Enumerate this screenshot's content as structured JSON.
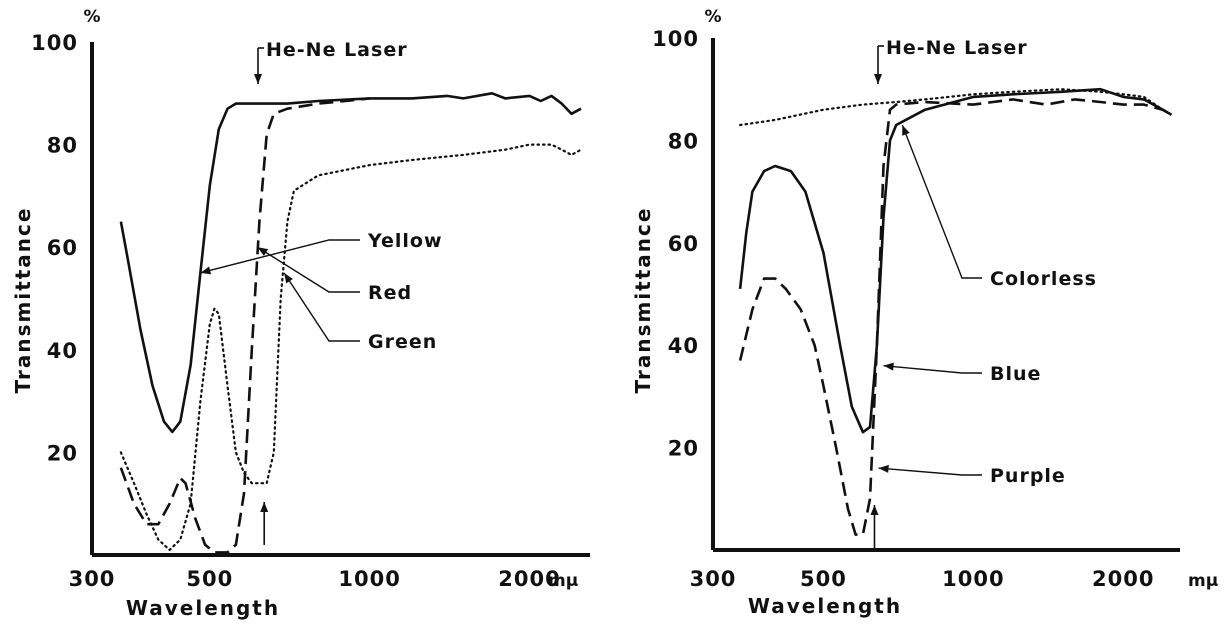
{
  "colors": {
    "ink": "#111111",
    "background": "#ffffff"
  },
  "chart_data": [
    {
      "type": "line",
      "xlabel": "Wavelength",
      "ylabel": "Transmittance",
      "x_unit": "mμ",
      "y_unit": "%",
      "x_scale": "log",
      "xlim": [
        300,
        2600
      ],
      "ylim": [
        0,
        100
      ],
      "x_ticks": [
        300,
        500,
        1000,
        2000
      ],
      "x_tick_labels": [
        "300",
        "500",
        "1000",
        "2000"
      ],
      "y_ticks": [
        20,
        40,
        60,
        80,
        100
      ],
      "y_tick_labels": [
        "20",
        "40",
        "60",
        "80",
        "100"
      ],
      "grid": false,
      "laser_label": "He-Ne Laser",
      "laser_wavelength": 633,
      "series": [
        {
          "name": "Yellow",
          "style": "solid",
          "points": [
            [
              340,
              65
            ],
            [
              350,
              58
            ],
            [
              370,
              44
            ],
            [
              390,
              33
            ],
            [
              410,
              26
            ],
            [
              425,
              24
            ],
            [
              440,
              26
            ],
            [
              460,
              37
            ],
            [
              480,
              55
            ],
            [
              500,
              72
            ],
            [
              520,
              83
            ],
            [
              540,
              87
            ],
            [
              560,
              88
            ],
            [
              600,
              88
            ],
            [
              700,
              88
            ],
            [
              800,
              88.5
            ],
            [
              1000,
              89
            ],
            [
              1200,
              89
            ],
            [
              1400,
              89.5
            ],
            [
              1500,
              89
            ],
            [
              1700,
              90
            ],
            [
              1800,
              89
            ],
            [
              2000,
              89.5
            ],
            [
              2100,
              88.5
            ],
            [
              2200,
              89.5
            ],
            [
              2300,
              88
            ],
            [
              2400,
              86
            ],
            [
              2500,
              87
            ]
          ]
        },
        {
          "name": "Red",
          "style": "dashed",
          "points": [
            [
              340,
              17
            ],
            [
              360,
              10
            ],
            [
              380,
              6
            ],
            [
              400,
              6
            ],
            [
              420,
              10
            ],
            [
              440,
              15
            ],
            [
              450,
              14
            ],
            [
              470,
              7
            ],
            [
              490,
              2
            ],
            [
              510,
              0.5
            ],
            [
              540,
              0.5
            ],
            [
              560,
              2
            ],
            [
              580,
              12
            ],
            [
              600,
              40
            ],
            [
              620,
              65
            ],
            [
              640,
              82
            ],
            [
              660,
              86
            ],
            [
              700,
              87
            ],
            [
              800,
              88
            ],
            [
              900,
              88.5
            ],
            [
              1000,
              89
            ]
          ]
        },
        {
          "name": "Green",
          "style": "dotted",
          "points": [
            [
              340,
              20
            ],
            [
              360,
              14
            ],
            [
              380,
              8
            ],
            [
              400,
              3
            ],
            [
              420,
              1
            ],
            [
              440,
              3
            ],
            [
              460,
              10
            ],
            [
              480,
              30
            ],
            [
              500,
              45
            ],
            [
              510,
              48
            ],
            [
              520,
              47
            ],
            [
              540,
              33
            ],
            [
              560,
              20
            ],
            [
              580,
              16
            ],
            [
              600,
              14
            ],
            [
              640,
              14
            ],
            [
              660,
              20
            ],
            [
              680,
              50
            ],
            [
              700,
              65
            ],
            [
              720,
              71
            ],
            [
              800,
              74
            ],
            [
              1000,
              76
            ],
            [
              1200,
              77
            ],
            [
              1500,
              78
            ],
            [
              1800,
              79
            ],
            [
              2000,
              80
            ],
            [
              2200,
              80
            ],
            [
              2300,
              79
            ],
            [
              2400,
              78
            ],
            [
              2500,
              79
            ]
          ]
        }
      ],
      "annotations": [
        {
          "label": "Yellow",
          "target": [
            480,
            55
          ]
        },
        {
          "label": "Red",
          "target": [
            615,
            60
          ]
        },
        {
          "label": "Green",
          "target": [
            690,
            55
          ]
        }
      ]
    },
    {
      "type": "line",
      "xlabel": "Wavelength",
      "ylabel": "Transmittance",
      "x_unit": "mμ",
      "y_unit": "%",
      "x_scale": "log",
      "xlim": [
        300,
        2600
      ],
      "ylim": [
        0,
        100
      ],
      "x_ticks": [
        300,
        500,
        1000,
        2000
      ],
      "x_tick_labels": [
        "300",
        "500",
        "1000",
        "2000"
      ],
      "y_ticks": [
        20,
        40,
        60,
        80,
        100
      ],
      "y_tick_labels": [
        "20",
        "40",
        "60",
        "80",
        "100"
      ],
      "grid": false,
      "laser_label": "He-Ne Laser",
      "laser_wavelength": 633,
      "series": [
        {
          "name": "Colorless",
          "style": "dotted",
          "points": [
            [
              340,
              83
            ],
            [
              400,
              84
            ],
            [
              500,
              86
            ],
            [
              600,
              87
            ],
            [
              700,
              87.5
            ],
            [
              800,
              88
            ],
            [
              1000,
              89
            ],
            [
              1200,
              89.5
            ],
            [
              1500,
              90
            ],
            [
              1800,
              89.5
            ],
            [
              2000,
              89
            ],
            [
              2200,
              88.5
            ],
            [
              2400,
              86
            ],
            [
              2500,
              85
            ]
          ]
        },
        {
          "name": "Blue",
          "style": "solid",
          "points": [
            [
              340,
              51
            ],
            [
              350,
              62
            ],
            [
              360,
              70
            ],
            [
              380,
              74
            ],
            [
              400,
              75
            ],
            [
              430,
              74
            ],
            [
              460,
              70
            ],
            [
              500,
              58
            ],
            [
              540,
              40
            ],
            [
              570,
              28
            ],
            [
              600,
              23
            ],
            [
              620,
              24
            ],
            [
              640,
              40
            ],
            [
              660,
              65
            ],
            [
              680,
              80
            ],
            [
              700,
              83
            ],
            [
              800,
              86
            ],
            [
              1000,
              88.5
            ],
            [
              1200,
              89
            ],
            [
              1500,
              89.5
            ],
            [
              1800,
              90
            ],
            [
              2000,
              88.5
            ],
            [
              2200,
              88
            ],
            [
              2400,
              86
            ],
            [
              2500,
              85
            ]
          ]
        },
        {
          "name": "Purple",
          "style": "dashed",
          "points": [
            [
              340,
              37
            ],
            [
              360,
              47
            ],
            [
              380,
              53
            ],
            [
              400,
              53
            ],
            [
              420,
              51
            ],
            [
              450,
              47
            ],
            [
              480,
              40
            ],
            [
              500,
              32
            ],
            [
              530,
              20
            ],
            [
              560,
              8
            ],
            [
              580,
              3
            ],
            [
              600,
              3
            ],
            [
              620,
              10
            ],
            [
              640,
              40
            ],
            [
              660,
              75
            ],
            [
              680,
              86
            ],
            [
              700,
              87
            ],
            [
              800,
              87.5
            ],
            [
              1000,
              87
            ],
            [
              1200,
              88
            ],
            [
              1400,
              87
            ],
            [
              1600,
              88
            ],
            [
              1800,
              87.5
            ],
            [
              2000,
              87
            ],
            [
              2200,
              87
            ],
            [
              2400,
              86
            ],
            [
              2500,
              85
            ]
          ]
        }
      ],
      "annotations": [
        {
          "label": "Colorless",
          "target": [
            720,
            83
          ]
        },
        {
          "label": "Blue",
          "target": [
            660,
            36
          ]
        },
        {
          "label": "Purple",
          "target": [
            645,
            16
          ]
        }
      ]
    }
  ]
}
